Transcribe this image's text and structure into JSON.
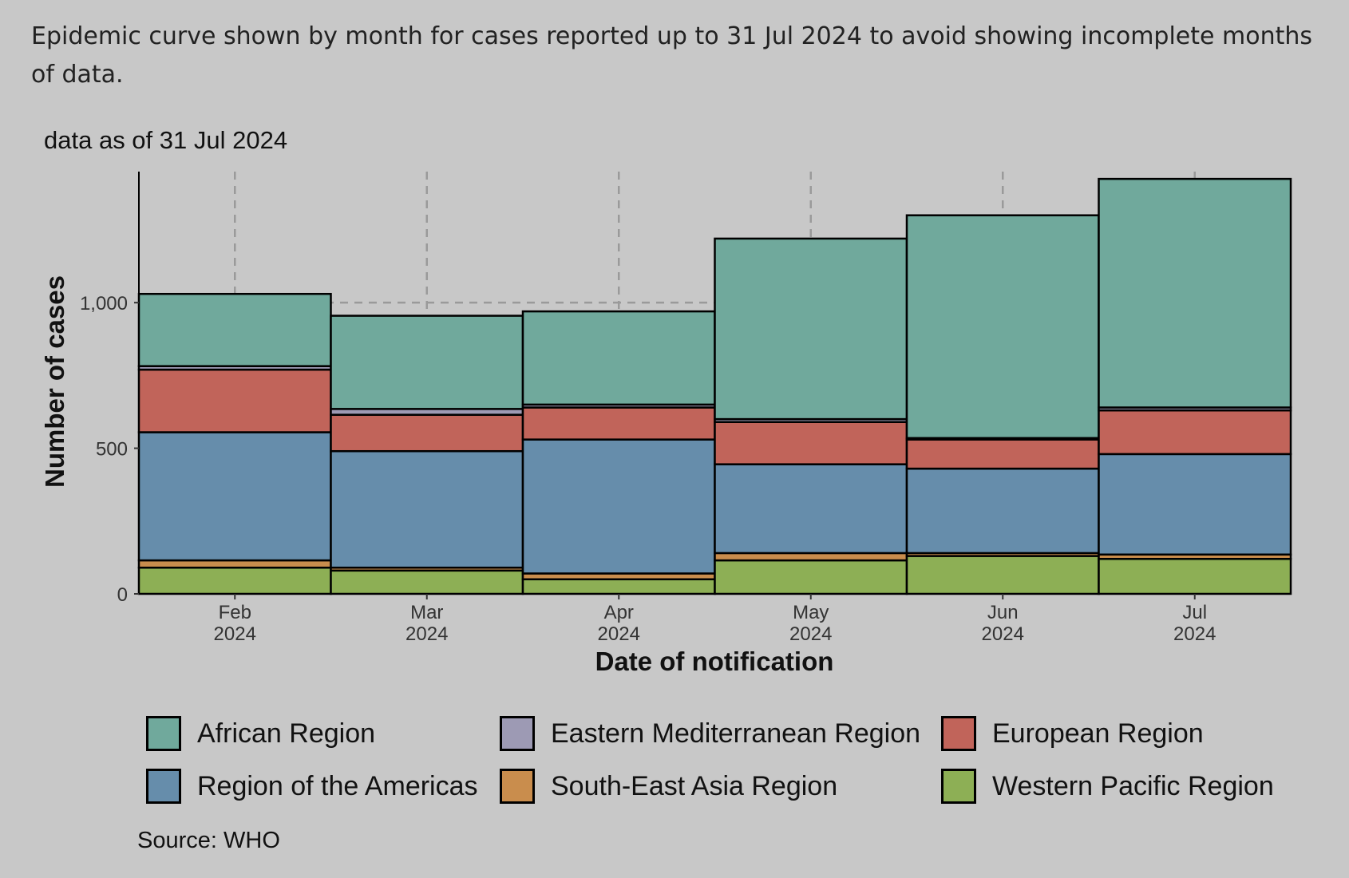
{
  "page": {
    "intro_text": "Epidemic curve shown by month for cases reported up to 31 Jul 2024 to avoid showing incomplete months of data.",
    "source": "Source: WHO"
  },
  "chart_data": {
    "type": "bar",
    "stacked": true,
    "subtitle": "data as of 31 Jul 2024",
    "xlabel": "Date of notification",
    "ylabel": "Number of cases",
    "categories": [
      "Feb\n2024",
      "Mar\n2024",
      "Apr\n2024",
      "May\n2024",
      "Jun\n2024",
      "Jul\n2024"
    ],
    "ylim": [
      0,
      1450
    ],
    "yticks": [
      0,
      500,
      1000
    ],
    "ytick_labels": [
      "0",
      "500",
      "1,000"
    ],
    "grid": "dashed vertical at month ticks, dashed horizontal at 1,000",
    "legend_position": "bottom",
    "series": [
      {
        "name": "Western Pacific Region",
        "color": "#8daf55",
        "values": [
          90,
          80,
          50,
          115,
          130,
          120
        ]
      },
      {
        "name": "South-East Asia Region",
        "color": "#c98d4d",
        "values": [
          25,
          10,
          20,
          25,
          10,
          15
        ]
      },
      {
        "name": "Region of the Americas",
        "color": "#668dab",
        "values": [
          440,
          400,
          460,
          305,
          290,
          345
        ]
      },
      {
        "name": "European Region",
        "color": "#c1645a",
        "values": [
          215,
          125,
          110,
          145,
          100,
          150
        ]
      },
      {
        "name": "Eastern Mediterranean Region",
        "color": "#9d9ab4",
        "values": [
          12,
          20,
          10,
          10,
          5,
          10
        ]
      },
      {
        "name": "African Region",
        "color": "#70a99c",
        "values": [
          248,
          320,
          320,
          620,
          765,
          785
        ]
      }
    ],
    "legend_order": [
      "African Region",
      "Eastern Mediterranean Region",
      "European Region",
      "Region of the Americas",
      "South-East Asia Region",
      "Western Pacific Region"
    ]
  }
}
